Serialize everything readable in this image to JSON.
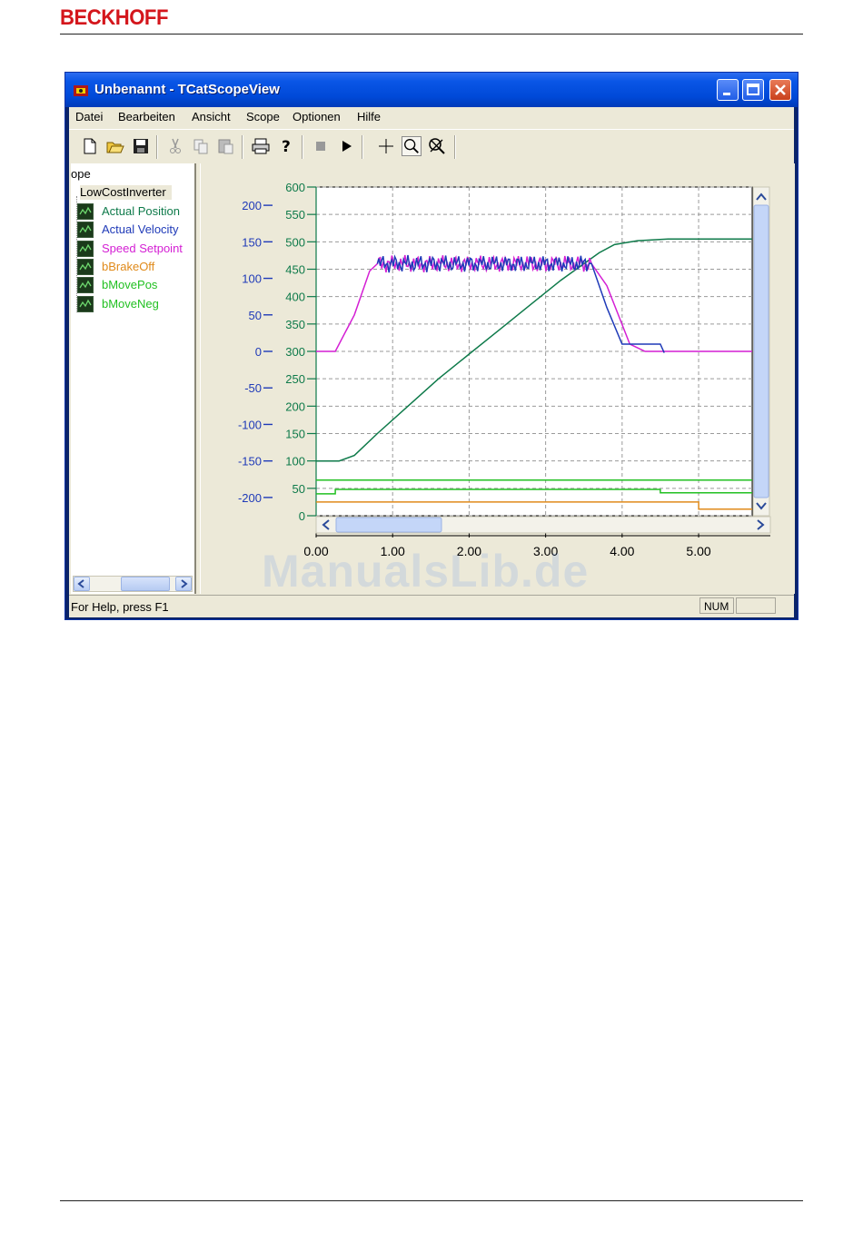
{
  "page": {
    "brand": "BECKHOFF",
    "watermark": "ManualsLib.de"
  },
  "window": {
    "title": "Unbenannt - TCatScopeView",
    "menu": [
      "Datei",
      "Bearbeiten",
      "Ansicht",
      "Scope",
      "Optionen",
      "Hilfe"
    ],
    "toolbar_icons": [
      "new-file-icon",
      "open-folder-icon",
      "save-icon",
      "cut-icon",
      "copy-icon",
      "paste-icon",
      "print-icon",
      "help-icon",
      "stop-icon",
      "play-icon",
      "crosshair-icon",
      "zoom-icon",
      "zoom-reset-icon"
    ],
    "status": {
      "help": "For Help, press F1",
      "num": "NUM"
    }
  },
  "tree": {
    "root": "ope",
    "node": "LowCostInverter",
    "channels": [
      {
        "label": "Actual Position",
        "color": "#0e7a4a"
      },
      {
        "label": "Actual Velocity",
        "color": "#1f3ab8"
      },
      {
        "label": "Speed Setpoint",
        "color": "#d41fd4"
      },
      {
        "label": "bBrakeOff",
        "color": "#e08a1a"
      },
      {
        "label": "bMovePos",
        "color": "#22c022"
      },
      {
        "label": "bMoveNeg",
        "color": "#22c022"
      }
    ]
  },
  "chart_data": {
    "type": "line",
    "x_ticks": [
      "0.00",
      "1.00",
      "2.00",
      "3.00",
      "4.00",
      "5.00"
    ],
    "xlim": [
      0,
      5.7
    ],
    "axes": [
      {
        "name": "velocity",
        "color": "#1f3ab8",
        "ticks": [
          "200",
          "150",
          "100",
          "50",
          "0",
          "-50",
          "-100",
          "-150",
          "-200"
        ],
        "range": [
          -200,
          200
        ]
      },
      {
        "name": "position",
        "color": "#0e7a4a",
        "ticks": [
          "600",
          "550",
          "500",
          "450",
          "400",
          "350",
          "300",
          "250",
          "200",
          "150",
          "100",
          "50",
          "0"
        ],
        "range": [
          0,
          600
        ]
      }
    ],
    "grid": true,
    "series": [
      {
        "name": "Actual Position",
        "axis": "position",
        "color": "#0e7a4a",
        "x": [
          0,
          0.3,
          0.5,
          0.8,
          1.2,
          1.6,
          2.0,
          2.4,
          2.8,
          3.2,
          3.5,
          3.7,
          3.9,
          4.2,
          4.6,
          5.0,
          5.7
        ],
        "y": [
          100,
          100,
          110,
          150,
          200,
          250,
          295,
          340,
          385,
          430,
          460,
          480,
          495,
          502,
          505,
          505,
          505
        ]
      },
      {
        "name": "Speed Setpoint",
        "axis": "velocity",
        "color": "#d41fd4",
        "x": [
          0,
          0.25,
          0.5,
          0.7,
          0.8,
          3.6,
          3.8,
          4.1,
          4.3,
          4.5,
          5.7
        ],
        "y": [
          0,
          0,
          50,
          110,
          120,
          120,
          90,
          10,
          0,
          0,
          0
        ]
      },
      {
        "name": "Actual Velocity",
        "axis": "velocity",
        "color": "#1f3ab8",
        "x": [
          0.8,
          3.6,
          3.8,
          4.0,
          4.5,
          4.55
        ],
        "y": [
          120,
          120,
          60,
          10,
          10,
          -2
        ]
      },
      {
        "name": "bMovePos",
        "axis": "position",
        "color": "#22c022",
        "x": [
          0,
          5.7
        ],
        "y": [
          65,
          65
        ]
      },
      {
        "name": "bMoveNeg",
        "axis": "position",
        "color": "#22c022",
        "x": [
          0,
          0.25,
          0.25,
          4.5,
          4.5,
          5.7
        ],
        "y": [
          40,
          40,
          48,
          48,
          42,
          42
        ]
      },
      {
        "name": "bBrakeOff",
        "axis": "position",
        "color": "#e08a1a",
        "x": [
          0,
          5.0,
          5.0,
          5.7
        ],
        "y": [
          25,
          25,
          12,
          12
        ]
      }
    ]
  }
}
